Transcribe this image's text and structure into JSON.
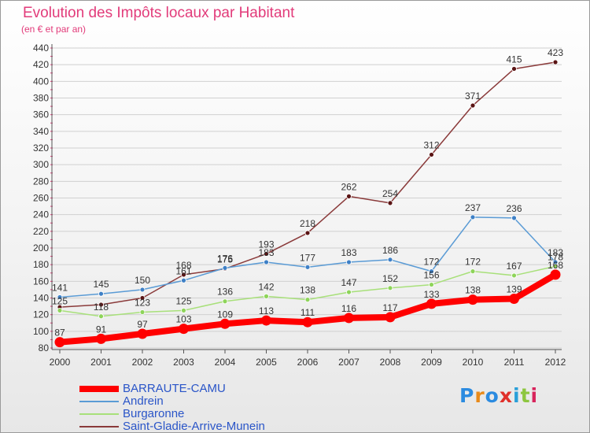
{
  "header": {
    "title": "Evolution des Impôts locaux par Habitant",
    "subtitle": "(en € et par an)"
  },
  "brand": {
    "text": "Proxiti",
    "letter_colors": [
      "#2b8be0",
      "#e88a1a",
      "#2b8be0",
      "#e0302a",
      "#2a9fd8",
      "#8dc63f",
      "#d8245c"
    ]
  },
  "chart_data": {
    "type": "line",
    "x": [
      "2000",
      "2001",
      "2002",
      "2003",
      "2004",
      "2005",
      "2006",
      "2007",
      "2008",
      "2009",
      "2010",
      "2011",
      "2012"
    ],
    "ylim": [
      80,
      440
    ],
    "yticks": [
      80,
      100,
      120,
      140,
      160,
      180,
      200,
      220,
      240,
      260,
      280,
      300,
      320,
      340,
      360,
      380,
      400,
      420,
      440
    ],
    "grid": "horizontal",
    "legend_position": "bottom-left",
    "series": [
      {
        "name": "BARRAUTE-CAMU",
        "color": "#ff0000",
        "emphasis": "thick",
        "values": [
          87,
          91,
          97,
          103,
          109,
          113,
          111,
          116,
          117,
          133,
          138,
          139,
          168
        ],
        "labels": [
          "87",
          "91",
          "97",
          "103",
          "109",
          "113",
          "111",
          "116",
          "117",
          "133",
          "138",
          "139",
          "168"
        ]
      },
      {
        "name": "Andrein",
        "color": "#5a9bd5",
        "marker": "#3e80c6",
        "values": [
          141,
          145,
          150,
          161,
          176,
          183,
          177,
          183,
          186,
          172,
          237,
          236,
          183
        ],
        "labels": [
          "141",
          "145",
          "150",
          "161",
          "176",
          "183",
          "177",
          "183",
          "186",
          "172",
          "237",
          "236",
          "183"
        ]
      },
      {
        "name": "Burgaronne",
        "color": "#a8e07a",
        "marker": "#8ed45a",
        "values": [
          125,
          118,
          123,
          125,
          136,
          142,
          138,
          147,
          152,
          156,
          172,
          167,
          178
        ],
        "labels": [
          "125",
          "118",
          "123",
          "125",
          "136",
          "142",
          "138",
          "147",
          "152",
          "156",
          "172",
          "167",
          "178"
        ]
      },
      {
        "name": "Saint-Gladie-Arrive-Munein",
        "color": "#8a3a3a",
        "marker": "#5a1414",
        "values": [
          129,
          132,
          140,
          168,
          175,
          193,
          218,
          262,
          254,
          312,
          371,
          415,
          423
        ],
        "labels": [
          "",
          "",
          "",
          "168",
          "175",
          "193",
          "218",
          "262",
          "254",
          "312",
          "371",
          "415",
          "423"
        ]
      }
    ]
  },
  "legend": {
    "items": [
      {
        "label": "BARRAUTE-CAMU",
        "color": "#ff0000"
      },
      {
        "label": "Andrein",
        "color": "#5a9bd5"
      },
      {
        "label": "Burgaronne",
        "color": "#a8e07a"
      },
      {
        "label": "Saint-Gladie-Arrive-Munein",
        "color": "#8a3a3a"
      }
    ]
  }
}
